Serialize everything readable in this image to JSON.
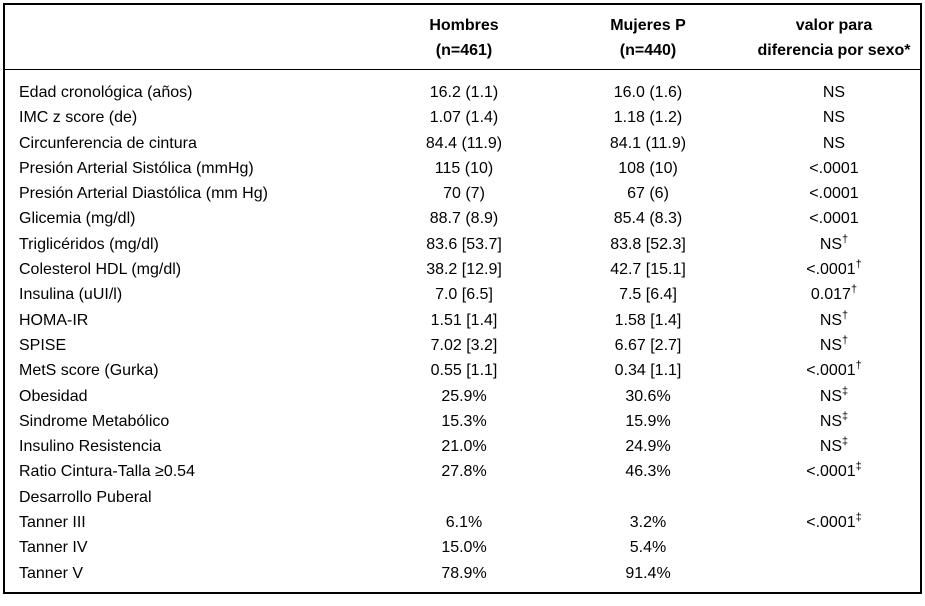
{
  "header": {
    "label_col": "",
    "hombres": {
      "line1": "Hombres",
      "line2": "(n=461)"
    },
    "mujeres": {
      "line1": "Mujeres P",
      "line2": "(n=440)"
    },
    "p": {
      "line1": "valor para",
      "line2": "diferencia por sexo*"
    }
  },
  "table": {
    "rows": [
      {
        "label": "Edad cronológica (años)",
        "hombres": "16.2 (1.1)",
        "mujeres": "16.0 (1.6)",
        "p": "NS",
        "p_sup": ""
      },
      {
        "label": "IMC z score (de)",
        "hombres": "1.07 (1.4)",
        "mujeres": "1.18 (1.2)",
        "p": "NS",
        "p_sup": ""
      },
      {
        "label": "Circunferencia de cintura",
        "hombres": "84.4 (11.9)",
        "mujeres": "84.1 (11.9)",
        "p": "NS",
        "p_sup": ""
      },
      {
        "label": "Presión Arterial Sistólica (mmHg)",
        "hombres": "115 (10)",
        "mujeres": "108 (10)",
        "p": "<.0001",
        "p_sup": ""
      },
      {
        "label": "Presión Arterial Diastólica (mm Hg)",
        "hombres": "70 (7)",
        "mujeres": "67 (6)",
        "p": "<.0001",
        "p_sup": ""
      },
      {
        "label": "Glicemia (mg/dl)",
        "hombres": "88.7 (8.9)",
        "mujeres": "85.4 (8.3)",
        "p": "<.0001",
        "p_sup": ""
      },
      {
        "label": "Triglicéridos (mg/dl)",
        "hombres": "83.6 [53.7]",
        "mujeres": "83.8 [52.3]",
        "p": "NS",
        "p_sup": "†"
      },
      {
        "label": "Colesterol HDL (mg/dl)",
        "hombres": "38.2 [12.9]",
        "mujeres": "42.7 [15.1]",
        "p": "<.0001",
        "p_sup": "†"
      },
      {
        "label": "Insulina (uUI/l)",
        "hombres": "7.0 [6.5]",
        "mujeres": "7.5 [6.4]",
        "p": "0.017",
        "p_sup": "†"
      },
      {
        "label": "HOMA-IR",
        "hombres": "1.51 [1.4]",
        "mujeres": "1.58 [1.4]",
        "p": "NS",
        "p_sup": "†"
      },
      {
        "label": "SPISE",
        "hombres": "7.02 [3.2]",
        "mujeres": "6.67 [2.7]",
        "p": "NS",
        "p_sup": "†"
      },
      {
        "label": "MetS score (Gurka)",
        "hombres": "0.55 [1.1]",
        "mujeres": "0.34 [1.1]",
        "p": "<.0001",
        "p_sup": "†"
      },
      {
        "label": "Obesidad",
        "hombres": "25.9%",
        "mujeres": "30.6%",
        "p": "NS",
        "p_sup": "‡"
      },
      {
        "label": "Sindrome Metabólico",
        "hombres": "15.3%",
        "mujeres": "15.9%",
        "p": "NS",
        "p_sup": "‡"
      },
      {
        "label": "Insulino Resistencia",
        "hombres": "21.0%",
        "mujeres": "24.9%",
        "p": "NS",
        "p_sup": "‡"
      },
      {
        "label": "Ratio Cintura-Talla ≥0.54",
        "hombres": "27.8%",
        "mujeres": "46.3%",
        "p": "<.0001",
        "p_sup": "‡"
      },
      {
        "label": "Desarrollo Puberal",
        "hombres": "",
        "mujeres": "",
        "p": "",
        "p_sup": ""
      },
      {
        "label": "Tanner III",
        "hombres": "6.1%",
        "mujeres": "3.2%",
        "p": "<.0001",
        "p_sup": "‡"
      },
      {
        "label": "Tanner IV",
        "hombres": "15.0%",
        "mujeres": "5.4%",
        "p": "",
        "p_sup": ""
      },
      {
        "label": "Tanner V",
        "hombres": "78.9%",
        "mujeres": "91.4%",
        "p": "",
        "p_sup": ""
      }
    ]
  },
  "colors": {
    "border": "#000000",
    "text": "#000000",
    "background": "#ffffff"
  }
}
